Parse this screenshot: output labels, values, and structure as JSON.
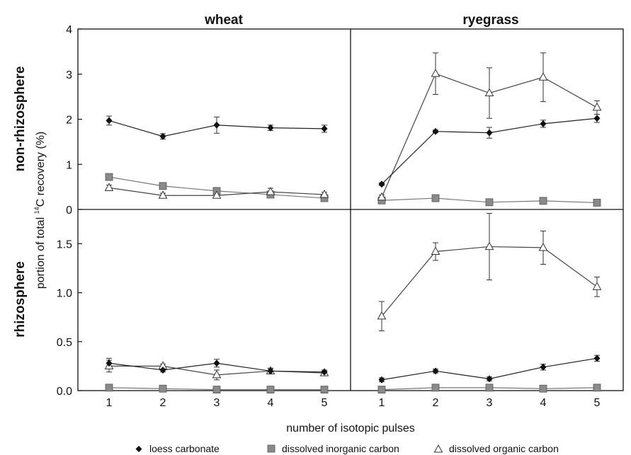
{
  "chart_data": {
    "type": "line",
    "columns": [
      "wheat",
      "ryegrass"
    ],
    "rows": [
      "non-rhizosphere",
      "rhizosphere"
    ],
    "ylabel_parts": {
      "before": "portion of total ",
      "sup": "14",
      "after": "C recovery (%)"
    },
    "xlabel": "number of isotopic pulses",
    "x": [
      1,
      2,
      3,
      4,
      5
    ],
    "x_ticks": [
      "1",
      "2",
      "3",
      "4",
      "5"
    ],
    "top_y_ticks": [
      "0",
      "1",
      "2",
      "3",
      "4"
    ],
    "bottom_y_ticks": [
      "0.0",
      "0.5",
      "1.0",
      "1.5"
    ],
    "top_ylim": [
      0,
      4
    ],
    "bottom_ylim": [
      0,
      1.85
    ],
    "legend": {
      "placement": "bottom",
      "entries": [
        {
          "key": "loess",
          "label": "loess carbonate"
        },
        {
          "key": "dic",
          "label": "dissolved inorganic carbon"
        },
        {
          "key": "doc",
          "label": "dissolved organic carbon"
        }
      ]
    },
    "panels": [
      {
        "row": "non-rhizosphere",
        "column": "wheat",
        "series": {
          "loess": {
            "values": [
              1.97,
              1.62,
              1.87,
              1.81,
              1.79
            ],
            "err": [
              0.1,
              0.06,
              0.18,
              0.06,
              0.08
            ]
          },
          "dic": {
            "values": [
              0.72,
              0.52,
              0.41,
              0.33,
              0.25
            ],
            "err": [
              0.04,
              0.04,
              0.03,
              0.03,
              0.03
            ]
          },
          "doc": {
            "values": [
              0.48,
              0.31,
              0.31,
              0.39,
              0.33
            ],
            "err": [
              0.06,
              0.05,
              0.06,
              0.08,
              0.05
            ]
          }
        }
      },
      {
        "row": "non-rhizosphere",
        "column": "ryegrass",
        "series": {
          "loess": {
            "values": [
              0.56,
              1.73,
              1.7,
              1.9,
              2.02
            ],
            "err": [
              0.03,
              0.03,
              0.12,
              0.08,
              0.09
            ]
          },
          "dic": {
            "values": [
              0.2,
              0.25,
              0.16,
              0.19,
              0.15
            ],
            "err": [
              0.03,
              0.03,
              0.02,
              0.06,
              0.02
            ]
          },
          "doc": {
            "values": [
              0.27,
              3.01,
              2.58,
              2.93,
              2.26
            ],
            "err": [
              0.05,
              0.46,
              0.56,
              0.54,
              0.15
            ]
          }
        }
      },
      {
        "row": "rhizosphere",
        "column": "wheat",
        "series": {
          "loess": {
            "values": [
              0.28,
              0.21,
              0.28,
              0.2,
              0.19
            ],
            "err": [
              0.05,
              0.02,
              0.04,
              0.02,
              0.02
            ]
          },
          "dic": {
            "values": [
              0.03,
              0.02,
              0.01,
              0.01,
              0.01
            ],
            "err": [
              0.01,
              0.01,
              0.01,
              0.01,
              0.01
            ]
          },
          "doc": {
            "values": [
              0.25,
              0.25,
              0.16,
              0.2,
              0.18
            ],
            "err": [
              0.06,
              0.02,
              0.05,
              0.03,
              0.02
            ]
          }
        }
      },
      {
        "row": "rhizosphere",
        "column": "ryegrass",
        "series": {
          "loess": {
            "values": [
              0.11,
              0.2,
              0.12,
              0.24,
              0.33
            ],
            "err": [
              0.02,
              0.02,
              0.02,
              0.03,
              0.03
            ]
          },
          "dic": {
            "values": [
              0.01,
              0.03,
              0.03,
              0.02,
              0.03
            ],
            "err": [
              0.01,
              0.01,
              0.01,
              0.01,
              0.01
            ]
          },
          "doc": {
            "values": [
              0.76,
              1.42,
              1.47,
              1.46,
              1.06
            ],
            "err": [
              0.15,
              0.09,
              0.34,
              0.17,
              0.1
            ]
          }
        }
      }
    ]
  }
}
